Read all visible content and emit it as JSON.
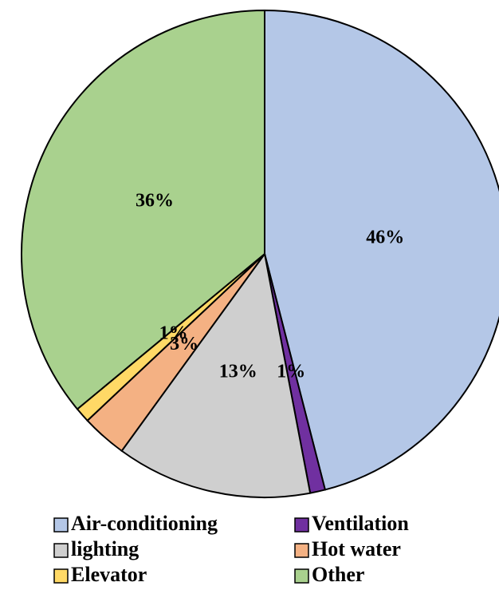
{
  "chart_data": {
    "type": "pie",
    "categories": [
      "Air-conditioning",
      "Ventilation",
      "lighting",
      "Hot water",
      "Elevator",
      "Other"
    ],
    "values": [
      46,
      1,
      13,
      3,
      1,
      36
    ],
    "value_labels": [
      "46%",
      "1%",
      "13%",
      "3%",
      "1%",
      "36%"
    ],
    "colors": [
      "#b4c7e7",
      "#7030a0",
      "#cfcfcf",
      "#f4b183",
      "#ffd966",
      "#a9d18e"
    ]
  }
}
